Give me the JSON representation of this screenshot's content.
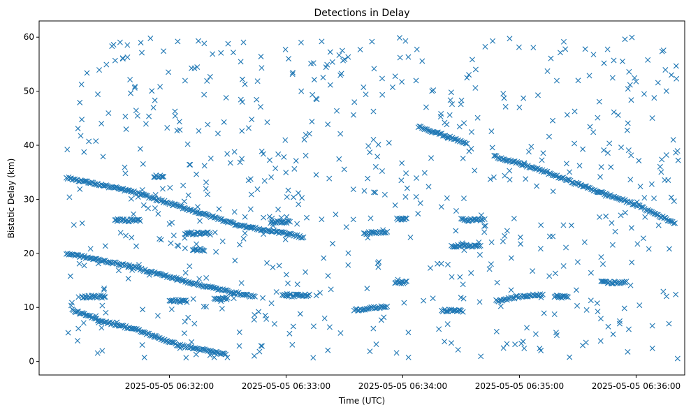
{
  "chart_data": {
    "type": "scatter",
    "title": "Detections in Delay",
    "xlabel": "Time (UTC)",
    "ylabel": "Bistatic Delay (km)",
    "x_unit": "time (UTC)",
    "xlim": [
      "2025-05-05 06:30:53",
      "2025-05-05 06:36:25"
    ],
    "ylim": [
      -2.5,
      63
    ],
    "xticks": [
      {
        "value": "2025-05-05 06:32:00",
        "label": "2025-05-05 06:32:00"
      },
      {
        "value": "2025-05-05 06:33:00",
        "label": "2025-05-05 06:33:00"
      },
      {
        "value": "2025-05-05 06:34:00",
        "label": "2025-05-05 06:34:00"
      },
      {
        "value": "2025-05-05 06:35:00",
        "label": "2025-05-05 06:35:00"
      },
      {
        "value": "2025-05-05 06:36:00",
        "label": "2025-05-05 06:36:00"
      }
    ],
    "yticks": [
      0,
      10,
      20,
      30,
      40,
      50,
      60
    ],
    "marker": "x",
    "color": "#1f77b4",
    "grid": false,
    "legend": "none",
    "tracks": [
      {
        "x": [
          "2025-05-05 06:31:07",
          "2025-05-05 06:31:40",
          "2025-05-05 06:32:20",
          "2025-05-05 06:32:35",
          "2025-05-05 06:32:50",
          "2025-05-05 06:32:55"
        ],
        "y": [
          34.0,
          31.5,
          27.0,
          25.3,
          24.2,
          24.0
        ]
      },
      {
        "x": [
          "2025-05-05 06:31:07",
          "2025-05-05 06:31:40",
          "2025-05-05 06:32:15",
          "2025-05-05 06:32:35",
          "2025-05-05 06:32:44"
        ],
        "y": [
          20.0,
          17.6,
          14.2,
          12.6,
          12.0
        ]
      },
      {
        "x": [
          "2025-05-05 06:31:10",
          "2025-05-05 06:31:25",
          "2025-05-05 06:31:42",
          "2025-05-05 06:32:05",
          "2025-05-05 06:32:29"
        ],
        "y": [
          9.5,
          7.5,
          6.0,
          3.0,
          1.3
        ]
      },
      {
        "x": [
          "2025-05-05 06:32:55",
          "2025-05-05 06:33:09"
        ],
        "y": [
          24.0,
          23.0
        ]
      },
      {
        "x": [
          "2025-05-05 06:34:08",
          "2025-05-05 06:34:20",
          "2025-05-05 06:34:33"
        ],
        "y": [
          43.5,
          42.0,
          40.3
        ]
      },
      {
        "x": [
          "2025-05-05 06:34:47",
          "2025-05-05 06:35:10",
          "2025-05-05 06:35:40",
          "2025-05-05 06:36:00",
          "2025-05-05 06:36:20"
        ],
        "y": [
          38.0,
          35.5,
          31.5,
          29.0,
          25.6
        ]
      },
      {
        "x": [
          "2025-05-05 06:34:48",
          "2025-05-05 06:35:00",
          "2025-05-05 06:35:12"
        ],
        "y": [
          11.2,
          12.0,
          12.4
        ]
      },
      {
        "x": [
          "2025-05-05 06:33:35",
          "2025-05-05 06:33:52"
        ],
        "y": [
          9.5,
          10.2
        ]
      },
      {
        "x": [
          "2025-05-05 06:33:40",
          "2025-05-05 06:33:52"
        ],
        "y": [
          23.7,
          24.0
        ]
      }
    ],
    "clusters": [
      {
        "x": [
          "2025-05-05 06:31:15",
          "2025-05-05 06:31:27"
        ],
        "y": 12.0
      },
      {
        "x": [
          "2025-05-05 06:31:32",
          "2025-05-05 06:31:45"
        ],
        "y": 26.1
      },
      {
        "x": [
          "2025-05-05 06:31:52",
          "2025-05-05 06:31:57"
        ],
        "y": 34.2
      },
      {
        "x": [
          "2025-05-05 06:32:00",
          "2025-05-05 06:32:09"
        ],
        "y": 11.2
      },
      {
        "x": [
          "2025-05-05 06:32:08",
          "2025-05-05 06:32:21"
        ],
        "y": 23.7
      },
      {
        "x": [
          "2025-05-05 06:32:12",
          "2025-05-05 06:32:18"
        ],
        "y": 20.7
      },
      {
        "x": [
          "2025-05-05 06:32:23",
          "2025-05-05 06:32:30"
        ],
        "y": 11.7
      },
      {
        "x": [
          "2025-05-05 06:32:52",
          "2025-05-05 06:33:02"
        ],
        "y": 25.8
      },
      {
        "x": [
          "2025-05-05 06:32:58",
          "2025-05-05 06:33:12"
        ],
        "y": 12.2
      },
      {
        "x": [
          "2025-05-05 06:33:57",
          "2025-05-05 06:34:02"
        ],
        "y": 26.3
      },
      {
        "x": [
          "2025-05-05 06:33:56",
          "2025-05-05 06:34:02"
        ],
        "y": 14.6
      },
      {
        "x": [
          "2025-05-05 06:34:25",
          "2025-05-05 06:34:40"
        ],
        "y": 21.4
      },
      {
        "x": [
          "2025-05-05 06:34:30",
          "2025-05-05 06:34:41"
        ],
        "y": 26.2
      },
      {
        "x": [
          "2025-05-05 06:34:20",
          "2025-05-05 06:34:30"
        ],
        "y": 9.4
      },
      {
        "x": [
          "2025-05-05 06:35:18",
          "2025-05-05 06:35:25"
        ],
        "y": 12.0
      },
      {
        "x": [
          "2025-05-05 06:35:42",
          "2025-05-05 06:35:55"
        ],
        "y": 14.6
      }
    ],
    "scatter": {
      "description": "Uniform clutter detections scattered across the full time range, roughly 0-60 km",
      "x_range": [
        "2025-05-05 06:31:07",
        "2025-05-05 06:36:22"
      ],
      "y_range": [
        0.5,
        60
      ],
      "approx_count": 650
    }
  }
}
